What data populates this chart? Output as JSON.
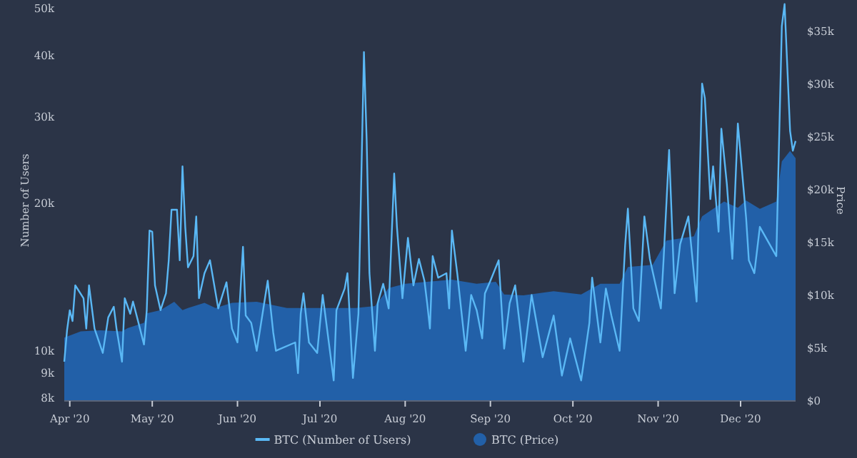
{
  "chart_data": {
    "type": "line",
    "ylabel": "Number of Users",
    "y2label": "Price",
    "log": "y",
    "legend": "bottom",
    "xlim": [
      "2020-03-30",
      "2020-12-21"
    ],
    "xticks": [
      {
        "value": "2020-04-01",
        "label": "Apr '20"
      },
      {
        "value": "2020-05-01",
        "label": "May '20"
      },
      {
        "value": "2020-06-01",
        "label": "Jun '20"
      },
      {
        "value": "2020-07-01",
        "label": "Jul '20"
      },
      {
        "value": "2020-08-01",
        "label": "Aug '20"
      },
      {
        "value": "2020-09-01",
        "label": "Sep '20"
      },
      {
        "value": "2020-10-01",
        "label": "Oct '20"
      },
      {
        "value": "2020-11-01",
        "label": "Nov '20"
      },
      {
        "value": "2020-12-01",
        "label": "Dec '20"
      }
    ],
    "ylim": [
      7900,
      52000
    ],
    "yticks": [
      {
        "value": 8000,
        "label": "8k"
      },
      {
        "value": 9000,
        "label": "9k"
      },
      {
        "value": 10000,
        "label": "10k"
      },
      {
        "value": 20000,
        "label": "20k"
      },
      {
        "value": 30000,
        "label": "30k"
      },
      {
        "value": 40000,
        "label": "40k"
      },
      {
        "value": 50000,
        "label": "50k"
      }
    ],
    "y2lim": [
      0,
      38000
    ],
    "y2ticks": [
      {
        "value": 0,
        "label": "$0"
      },
      {
        "value": 5000,
        "label": "$5k"
      },
      {
        "value": 10000,
        "label": "$10k"
      },
      {
        "value": 15000,
        "label": "$15k"
      },
      {
        "value": 20000,
        "label": "$20k"
      },
      {
        "value": 25000,
        "label": "$25k"
      },
      {
        "value": 30000,
        "label": "$30k"
      },
      {
        "value": 35000,
        "label": "$35k"
      }
    ],
    "series": [
      {
        "name": "BTC (Number of Users)",
        "color": "#5ab8f5",
        "x": [
          "2020-03-30",
          "2020-03-31",
          "2020-04-01",
          "2020-04-02",
          "2020-04-03",
          "2020-04-06",
          "2020-04-07",
          "2020-04-08",
          "2020-04-10",
          "2020-04-13",
          "2020-04-15",
          "2020-04-17",
          "2020-04-18",
          "2020-04-20",
          "2020-04-21",
          "2020-04-23",
          "2020-04-24",
          "2020-04-26",
          "2020-04-28",
          "2020-04-29",
          "2020-04-30",
          "2020-05-01",
          "2020-05-02",
          "2020-05-04",
          "2020-05-06",
          "2020-05-07",
          "2020-05-08",
          "2020-05-10",
          "2020-05-11",
          "2020-05-12",
          "2020-05-13",
          "2020-05-14",
          "2020-05-16",
          "2020-05-17",
          "2020-05-18",
          "2020-05-20",
          "2020-05-22",
          "2020-05-25",
          "2020-05-28",
          "2020-05-30",
          "2020-06-01",
          "2020-06-03",
          "2020-06-04",
          "2020-06-06",
          "2020-06-08",
          "2020-06-12",
          "2020-06-14",
          "2020-06-15",
          "2020-06-22",
          "2020-06-23",
          "2020-06-24",
          "2020-06-25",
          "2020-06-27",
          "2020-06-30",
          "2020-07-02",
          "2020-07-06",
          "2020-07-07",
          "2020-07-10",
          "2020-07-11",
          "2020-07-13",
          "2020-07-15",
          "2020-07-17",
          "2020-07-18",
          "2020-07-19",
          "2020-07-21",
          "2020-07-22",
          "2020-07-24",
          "2020-07-26",
          "2020-07-28",
          "2020-07-29",
          "2020-07-31",
          "2020-08-02",
          "2020-08-04",
          "2020-08-06",
          "2020-08-08",
          "2020-08-09",
          "2020-08-10",
          "2020-08-11",
          "2020-08-13",
          "2020-08-16",
          "2020-08-17",
          "2020-08-18",
          "2020-08-20",
          "2020-08-23",
          "2020-08-25",
          "2020-08-27",
          "2020-08-29",
          "2020-08-30",
          "2020-09-01",
          "2020-09-04",
          "2020-09-06",
          "2020-09-08",
          "2020-09-10",
          "2020-09-12",
          "2020-09-13",
          "2020-09-16",
          "2020-09-20",
          "2020-09-24",
          "2020-09-27",
          "2020-09-30",
          "2020-10-04",
          "2020-10-07",
          "2020-10-08",
          "2020-10-11",
          "2020-10-13",
          "2020-10-15",
          "2020-10-18",
          "2020-10-20",
          "2020-10-21",
          "2020-10-23",
          "2020-10-25",
          "2020-10-27",
          "2020-10-29",
          "2020-11-02",
          "2020-11-03",
          "2020-11-05",
          "2020-11-07",
          "2020-11-09",
          "2020-11-12",
          "2020-11-15",
          "2020-11-17",
          "2020-11-18",
          "2020-11-20",
          "2020-11-21",
          "2020-11-23",
          "2020-11-24",
          "2020-11-26",
          "2020-11-28",
          "2020-11-30",
          "2020-12-03",
          "2020-12-04",
          "2020-12-06",
          "2020-12-08",
          "2020-12-14",
          "2020-12-16",
          "2020-12-17",
          "2020-12-19",
          "2020-12-20",
          "2020-12-21"
        ],
        "values": [
          9500,
          11000,
          12100,
          11500,
          13600,
          12800,
          11100,
          13600,
          11100,
          9900,
          11700,
          12300,
          11100,
          9500,
          12800,
          11900,
          12600,
          11400,
          10300,
          12100,
          17600,
          17500,
          13600,
          12100,
          13100,
          15300,
          19400,
          19400,
          15300,
          23800,
          17900,
          14800,
          15600,
          18800,
          12800,
          14400,
          15300,
          12200,
          13800,
          11100,
          10400,
          16300,
          11800,
          11400,
          10000,
          13900,
          10900,
          10000,
          10400,
          9000,
          11900,
          13100,
          10400,
          9900,
          13000,
          8700,
          12100,
          13400,
          14400,
          8800,
          11900,
          40700,
          26800,
          14400,
          10000,
          12500,
          13700,
          12200,
          23000,
          17900,
          12800,
          17000,
          13600,
          15400,
          13900,
          12500,
          11100,
          15600,
          14100,
          14400,
          12200,
          17600,
          14300,
          10000,
          13000,
          12100,
          10600,
          13100,
          13900,
          15300,
          10100,
          12500,
          13600,
          10900,
          9500,
          13000,
          9700,
          11800,
          8900,
          10600,
          8700,
          11400,
          14100,
          10400,
          13400,
          11800,
          10000,
          16400,
          19500,
          12200,
          11500,
          18800,
          15400,
          12200,
          15400,
          25700,
          13100,
          16500,
          18800,
          12600,
          35100,
          32800,
          20400,
          23800,
          17500,
          28400,
          21900,
          15400,
          29100,
          18700,
          15300,
          14400,
          17900,
          15600,
          46000,
          51000,
          28100,
          25600,
          26800
        ]
      },
      {
        "name": "BTC (Price)",
        "type": "area",
        "axis": "y2",
        "color": "#2260a8",
        "x": [
          "2020-03-30",
          "2020-04-05",
          "2020-04-12",
          "2020-04-20",
          "2020-04-22",
          "2020-04-28",
          "2020-04-29",
          "2020-05-04",
          "2020-05-09",
          "2020-05-12",
          "2020-05-14",
          "2020-05-20",
          "2020-05-24",
          "2020-05-30",
          "2020-06-08",
          "2020-06-19",
          "2020-07-06",
          "2020-07-14",
          "2020-07-21",
          "2020-07-26",
          "2020-08-01",
          "2020-08-09",
          "2020-08-18",
          "2020-08-27",
          "2020-09-03",
          "2020-09-06",
          "2020-09-13",
          "2020-09-24",
          "2020-10-04",
          "2020-10-11",
          "2020-10-18",
          "2020-10-21",
          "2020-10-30",
          "2020-11-04",
          "2020-11-14",
          "2020-11-17",
          "2020-11-21",
          "2020-11-25",
          "2020-11-30",
          "2020-12-03",
          "2020-12-08",
          "2020-12-14",
          "2020-12-16",
          "2020-12-19",
          "2020-12-21"
        ],
        "values": [
          6000,
          6600,
          6700,
          6600,
          6900,
          7400,
          8300,
          8600,
          9400,
          8600,
          8800,
          9300,
          8800,
          9300,
          9400,
          8800,
          8800,
          8800,
          9000,
          10700,
          11100,
          11300,
          11500,
          11100,
          11300,
          10100,
          10000,
          10400,
          10100,
          11100,
          11100,
          12700,
          12900,
          15200,
          15600,
          17500,
          18200,
          18900,
          18300,
          19000,
          18200,
          18900,
          22700,
          23700,
          23000
        ]
      }
    ]
  }
}
